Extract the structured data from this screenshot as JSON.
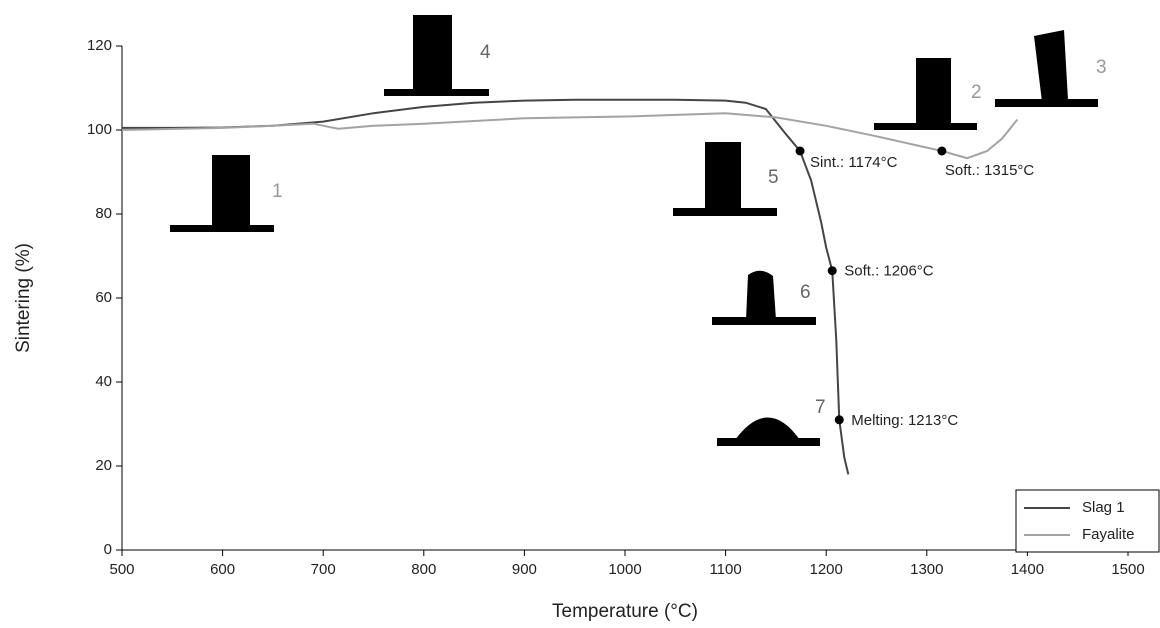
{
  "chart_data": {
    "type": "line",
    "x_label": "Temperature (°C)",
    "y_label": "Sintering (%)",
    "xlim": [
      500,
      1500
    ],
    "ylim": [
      0,
      120
    ],
    "xticks": [
      500,
      600,
      700,
      800,
      900,
      1000,
      1100,
      1200,
      1300,
      1400,
      1500
    ],
    "yticks": [
      0,
      20,
      40,
      60,
      80,
      100,
      120
    ],
    "legend": "lower right",
    "series": [
      {
        "name": "Slag 1",
        "color": "#454545",
        "x": [
          500,
          550,
          600,
          650,
          700,
          750,
          800,
          850,
          900,
          950,
          1000,
          1050,
          1100,
          1120,
          1140,
          1150,
          1160,
          1174,
          1185,
          1195,
          1200,
          1206,
          1210,
          1213,
          1218,
          1222
        ],
        "values": [
          100.5,
          100.5,
          100.6,
          101,
          102,
          104,
          105.5,
          106.5,
          107,
          107.2,
          107.2,
          107.2,
          107,
          106.5,
          105,
          102,
          99,
          95,
          88,
          78,
          72,
          66.5,
          50,
          31,
          22,
          18
        ]
      },
      {
        "name": "Fayalite",
        "color": "#a3a3a3",
        "x": [
          500,
          600,
          650,
          690,
          715,
          750,
          800,
          900,
          1000,
          1100,
          1150,
          1200,
          1250,
          1315,
          1340,
          1360,
          1375,
          1390
        ],
        "values": [
          100,
          100.5,
          101,
          101.5,
          100.3,
          101,
          101.5,
          102.8,
          103.2,
          104,
          103,
          101,
          98.5,
          95,
          93.3,
          95,
          98,
          102.5
        ]
      }
    ],
    "annotations": [
      {
        "text": "Sint.: 1174°C",
        "x": 1174,
        "y": 95
      },
      {
        "text": "Soft.: 1206°C",
        "x": 1206,
        "y": 66.5
      },
      {
        "text": "Melting: 1213°C",
        "x": 1213,
        "y": 31
      },
      {
        "text": "Soft.: 1315°C",
        "x": 1315,
        "y": 95
      }
    ],
    "sample_labels": [
      "1",
      "2",
      "3",
      "4",
      "5",
      "6",
      "7"
    ]
  }
}
